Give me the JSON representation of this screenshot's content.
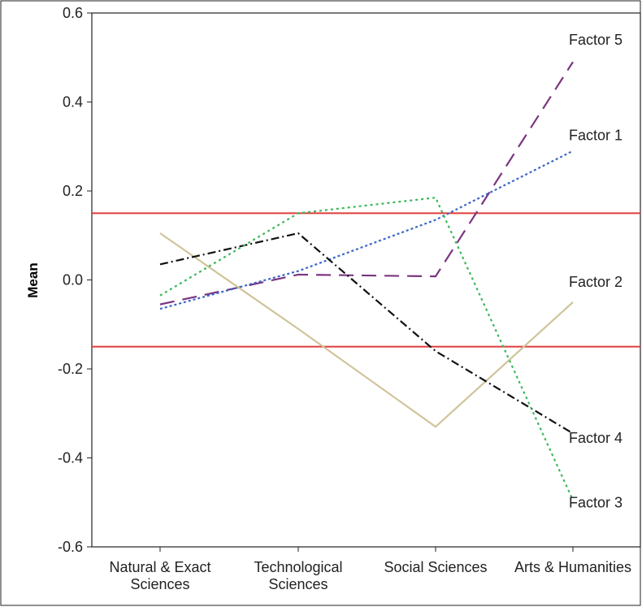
{
  "chart_data": {
    "type": "line",
    "title": "",
    "xlabel": "",
    "ylabel": "Mean",
    "ylim": [
      -0.6,
      0.6
    ],
    "yticks": [
      0.6,
      0.4,
      0.2,
      0.0,
      -0.2,
      -0.4,
      -0.6
    ],
    "ytick_labels": [
      "0.6",
      "0.4",
      "0.2",
      "0.0",
      "-0.2",
      "-0.4",
      "-0.6"
    ],
    "categories": [
      [
        "Natural & Exact",
        "Sciences"
      ],
      [
        "Technological",
        "Sciences"
      ],
      [
        "Social Sciences"
      ],
      [
        "Arts & Humanities"
      ]
    ],
    "grid": false,
    "legend": "inline labels at right end of each line",
    "reference_lines": [
      {
        "y": 0.15,
        "color": "#e03c3c"
      },
      {
        "y": -0.15,
        "color": "#e03c3c"
      }
    ],
    "series": [
      {
        "name": "Factor 5",
        "values": [
          -0.055,
          0.012,
          0.008,
          0.49
        ],
        "color": "#7a3580",
        "dash": "18,10",
        "label_y": 0.54
      },
      {
        "name": "Factor 1",
        "values": [
          -0.065,
          0.02,
          0.135,
          0.29
        ],
        "color": "#3a66c8",
        "dash": "3,3",
        "label_y": 0.325
      },
      {
        "name": "Factor 2",
        "values": [
          0.105,
          -0.11,
          -0.33,
          -0.05
        ],
        "color": "#cfc49a",
        "dash": "",
        "label_y": -0.005
      },
      {
        "name": "Factor 4",
        "values": [
          0.035,
          0.105,
          -0.16,
          -0.345
        ],
        "color": "#111111",
        "dash": "10,4,2,4",
        "label_y": -0.355
      },
      {
        "name": "Factor 3",
        "values": [
          -0.035,
          0.15,
          0.185,
          -0.495
        ],
        "color": "#3cb85a",
        "dash": "3,4",
        "label_y": -0.5
      }
    ]
  }
}
